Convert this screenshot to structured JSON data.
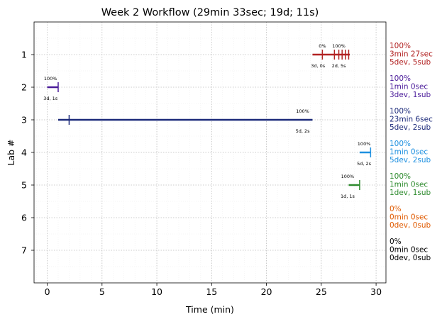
{
  "chart_data": {
    "type": "timeline",
    "title": "Week 2 Workflow (29min 33sec; 19d; 11s)",
    "xlabel": "Time (min)",
    "ylabel": "Lab #",
    "xlim": [
      -1.2,
      30.9
    ],
    "ylim": [
      8.0,
      0.0
    ],
    "xticks": [
      0,
      5,
      10,
      15,
      20,
      25,
      30
    ],
    "yticks": [
      1,
      2,
      3,
      4,
      5,
      6,
      7
    ],
    "grid": true,
    "labs": [
      {
        "lab": 1,
        "color": "#b22222",
        "start": 24.2,
        "end": 27.6,
        "ticks": [
          25.1,
          26.2,
          26.6,
          26.9,
          27.2,
          27.5
        ],
        "top_left": "0%",
        "top_left_x": 25.1,
        "top_right": "100%",
        "top_right_x": 26.6,
        "bottom_left": "3d, 0s",
        "bottom_left_x": 24.7,
        "bottom_right": "2d, 5s",
        "bottom_right_x": 26.6,
        "side": [
          "100%",
          "3min 27sec",
          "5dev, 5sub"
        ]
      },
      {
        "lab": 2,
        "color": "#4b1c9a",
        "start": 0.0,
        "end": 1.0,
        "ticks": [
          1.0
        ],
        "top_left": "100%",
        "top_left_x": 0.3,
        "top_right": "",
        "top_right_x": 0,
        "bottom_left": "3d, 1s",
        "bottom_left_x": 0.3,
        "bottom_right": "",
        "bottom_right_x": 0,
        "side": [
          "100%",
          "1min 0sec",
          "3dev, 1sub"
        ]
      },
      {
        "lab": 3,
        "color": "#1c2a7a",
        "start": 1.0,
        "end": 24.2,
        "ticks": [
          2.0
        ],
        "top_left": "100%",
        "top_left_x": 23.3,
        "top_right": "",
        "top_right_x": 0,
        "bottom_left": "5d, 2s",
        "bottom_left_x": 23.3,
        "bottom_right": "",
        "bottom_right_x": 0,
        "side": [
          "100%",
          "23min 6sec",
          "5dev, 2sub"
        ]
      },
      {
        "lab": 4,
        "color": "#1e90e0",
        "start": 28.5,
        "end": 29.5,
        "ticks": [
          29.5
        ],
        "top_left": "100%",
        "top_left_x": 28.9,
        "top_right": "",
        "top_right_x": 0,
        "bottom_left": "5d, 2s",
        "bottom_left_x": 28.9,
        "bottom_right": "",
        "bottom_right_x": 0,
        "side": [
          "100%",
          "1min 0sec",
          "5dev, 2sub"
        ]
      },
      {
        "lab": 5,
        "color": "#2e8b2e",
        "start": 27.5,
        "end": 28.5,
        "ticks": [
          28.5
        ],
        "top_left": "100%",
        "top_left_x": 27.4,
        "top_right": "",
        "top_right_x": 0,
        "bottom_left": "1d, 1s",
        "bottom_left_x": 27.4,
        "bottom_right": "",
        "bottom_right_x": 0,
        "side": [
          "100%",
          "1min 0sec",
          "1dev, 1sub"
        ]
      },
      {
        "lab": 6,
        "color": "#e05a00",
        "start": null,
        "end": null,
        "ticks": [],
        "top_left": "",
        "top_left_x": 0,
        "top_right": "",
        "top_right_x": 0,
        "bottom_left": "",
        "bottom_left_x": 0,
        "bottom_right": "",
        "bottom_right_x": 0,
        "side": [
          "0%",
          "0min 0sec",
          "0dev, 0sub"
        ]
      },
      {
        "lab": 7,
        "color": "#000000",
        "start": null,
        "end": null,
        "ticks": [],
        "top_left": "",
        "top_left_x": 0,
        "top_right": "",
        "top_right_x": 0,
        "bottom_left": "",
        "bottom_left_x": 0,
        "bottom_right": "",
        "bottom_right_x": 0,
        "side": [
          "0%",
          "0min 0sec",
          "0dev, 0sub"
        ]
      }
    ]
  }
}
